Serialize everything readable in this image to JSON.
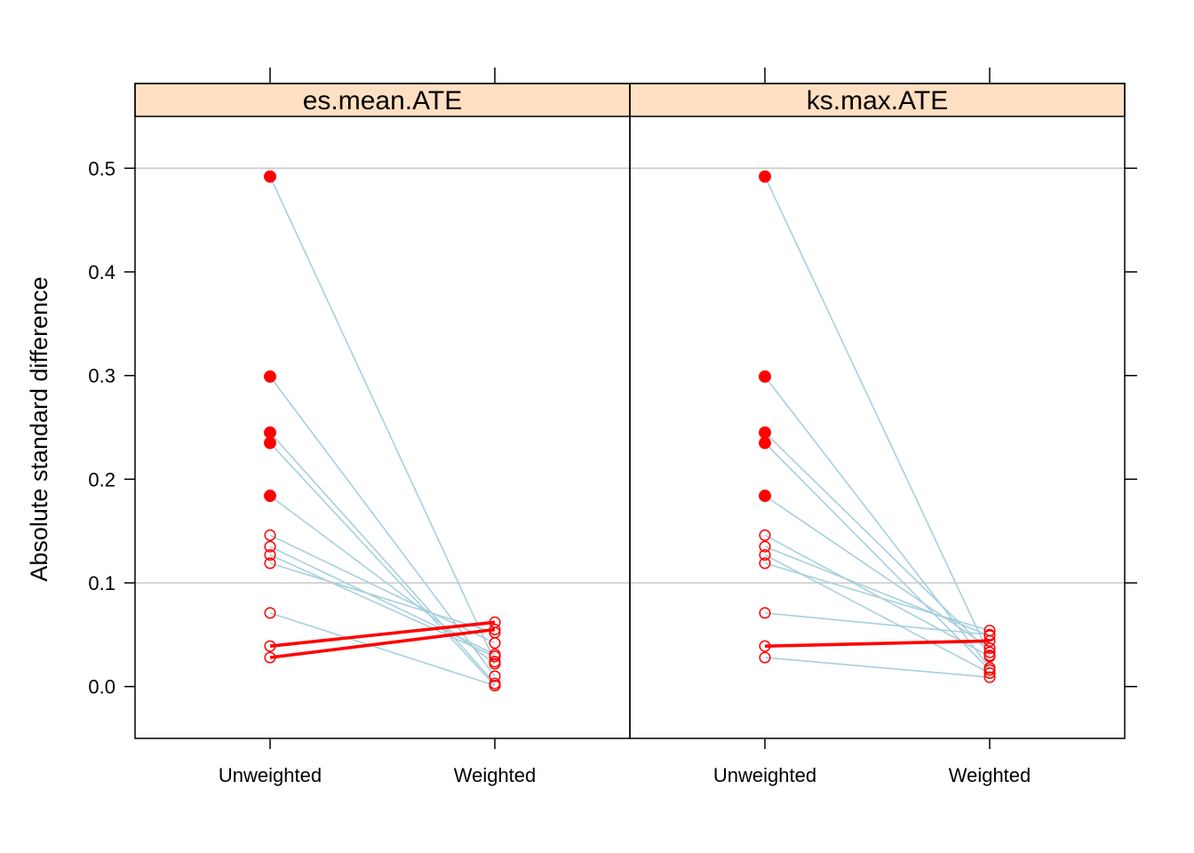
{
  "chart_data": {
    "type": "line",
    "ylabel": "Absolute standard difference",
    "ylim": [
      -0.05,
      0.55
    ],
    "yticks": [
      "0.0",
      "0.1",
      "0.2",
      "0.3",
      "0.4",
      "0.5"
    ],
    "reference_lines": [
      0.1,
      0.5
    ],
    "grid": false,
    "colors": {
      "strip": "#ffe0c2",
      "line": "#a6d0dd",
      "highlight": "#ff0000",
      "reference": "#c8c8c8"
    },
    "panels": [
      {
        "title": "es.mean.ATE",
        "categories": [
          "Unweighted",
          "Weighted"
        ],
        "filled_threshold": 0.15,
        "series": [
          {
            "values": [
              0.492,
              0.024
            ],
            "highlight": false
          },
          {
            "values": [
              0.299,
              0.01
            ],
            "highlight": false
          },
          {
            "values": [
              0.245,
              0.003
            ],
            "highlight": false
          },
          {
            "values": [
              0.235,
              0.001
            ],
            "highlight": false
          },
          {
            "values": [
              0.184,
              0.022
            ],
            "highlight": false
          },
          {
            "values": [
              0.146,
              0.042
            ],
            "highlight": false
          },
          {
            "values": [
              0.135,
              0.031
            ],
            "highlight": false
          },
          {
            "values": [
              0.127,
              0.029
            ],
            "highlight": false
          },
          {
            "values": [
              0.119,
              0.052
            ],
            "highlight": false
          },
          {
            "values": [
              0.071,
              0.001
            ],
            "highlight": false
          },
          {
            "values": [
              0.039,
              0.062
            ],
            "highlight": true
          },
          {
            "values": [
              0.028,
              0.055
            ],
            "highlight": true
          }
        ]
      },
      {
        "title": "ks.max.ATE",
        "categories": [
          "Unweighted",
          "Weighted"
        ],
        "filled_threshold": 0.15,
        "series": [
          {
            "values": [
              0.492,
              0.03
            ],
            "highlight": false
          },
          {
            "values": [
              0.299,
              0.018
            ],
            "highlight": false
          },
          {
            "values": [
              0.245,
              0.033
            ],
            "highlight": false
          },
          {
            "values": [
              0.235,
              0.016
            ],
            "highlight": false
          },
          {
            "values": [
              0.184,
              0.037
            ],
            "highlight": false
          },
          {
            "values": [
              0.146,
              0.029
            ],
            "highlight": false
          },
          {
            "values": [
              0.135,
              0.049
            ],
            "highlight": false
          },
          {
            "values": [
              0.127,
              0.013
            ],
            "highlight": false
          },
          {
            "values": [
              0.119,
              0.054
            ],
            "highlight": false
          },
          {
            "values": [
              0.071,
              0.05
            ],
            "highlight": false
          },
          {
            "values": [
              0.039,
              0.044
            ],
            "highlight": true
          },
          {
            "values": [
              0.028,
              0.009
            ],
            "highlight": false
          }
        ]
      }
    ]
  }
}
